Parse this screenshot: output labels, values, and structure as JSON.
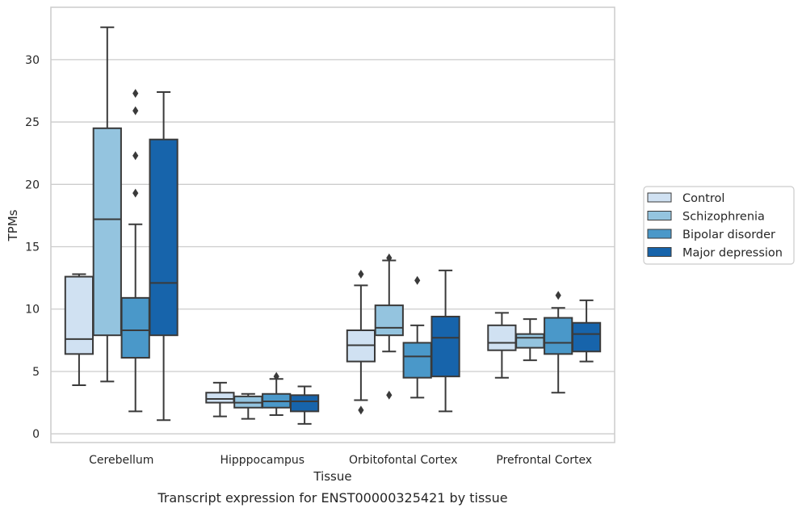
{
  "chart_data": {
    "type": "box",
    "caption": "Transcript expression for ENST00000325421 by tissue",
    "xlabel": "Tissue",
    "ylabel": "TPMs",
    "ylim": [
      -0.7,
      34.2
    ],
    "yticks": [
      0,
      5,
      10,
      15,
      20,
      25,
      30
    ],
    "grid": "horizontal",
    "legend_position": "right",
    "categories": [
      "Cerebellum",
      "Hipppocampus",
      "Orbitofontal Cortex",
      "Prefrontal Cortex"
    ],
    "series": [
      {
        "name": "Control",
        "color": "#d0e1f2",
        "boxes": [
          {
            "whisker_low": 3.9,
            "q1": 6.4,
            "median": 7.6,
            "q3": 12.6,
            "whisker_high": 12.8,
            "outliers": []
          },
          {
            "whisker_low": 1.4,
            "q1": 2.5,
            "median": 2.8,
            "q3": 3.3,
            "whisker_high": 4.1,
            "outliers": []
          },
          {
            "whisker_low": 2.7,
            "q1": 5.8,
            "median": 7.1,
            "q3": 8.3,
            "whisker_high": 11.9,
            "outliers": [
              12.8,
              1.9
            ]
          },
          {
            "whisker_low": 4.5,
            "q1": 6.7,
            "median": 7.3,
            "q3": 8.7,
            "whisker_high": 9.7,
            "outliers": []
          }
        ]
      },
      {
        "name": "Schizophrenia",
        "color": "#94c4df",
        "boxes": [
          {
            "whisker_low": 4.2,
            "q1": 7.9,
            "median": 17.2,
            "q3": 24.5,
            "whisker_high": 32.6,
            "outliers": []
          },
          {
            "whisker_low": 1.2,
            "q1": 2.1,
            "median": 2.5,
            "q3": 3.0,
            "whisker_high": 3.2,
            "outliers": []
          },
          {
            "whisker_low": 6.6,
            "q1": 7.9,
            "median": 8.5,
            "q3": 10.3,
            "whisker_high": 13.9,
            "outliers": [
              14.1,
              3.1
            ]
          },
          {
            "whisker_low": 5.9,
            "q1": 6.9,
            "median": 7.7,
            "q3": 8.0,
            "whisker_high": 9.2,
            "outliers": []
          }
        ]
      },
      {
        "name": "Bipolar disorder",
        "color": "#4a98c9",
        "boxes": [
          {
            "whisker_low": 1.8,
            "q1": 6.1,
            "median": 8.3,
            "q3": 10.9,
            "whisker_high": 16.8,
            "outliers": [
              27.3,
              25.9,
              22.3,
              19.3
            ]
          },
          {
            "whisker_low": 1.5,
            "q1": 2.1,
            "median": 2.6,
            "q3": 3.2,
            "whisker_high": 4.4,
            "outliers": [
              4.6
            ]
          },
          {
            "whisker_low": 2.9,
            "q1": 4.5,
            "median": 6.2,
            "q3": 7.3,
            "whisker_high": 8.7,
            "outliers": [
              12.3
            ]
          },
          {
            "whisker_low": 3.3,
            "q1": 6.4,
            "median": 7.3,
            "q3": 9.3,
            "whisker_high": 10.1,
            "outliers": [
              11.1
            ]
          }
        ]
      },
      {
        "name": "Major depression",
        "color": "#1764ab",
        "boxes": [
          {
            "whisker_low": 1.1,
            "q1": 7.9,
            "median": 12.1,
            "q3": 23.6,
            "whisker_high": 27.4,
            "outliers": []
          },
          {
            "whisker_low": 0.8,
            "q1": 1.8,
            "median": 2.6,
            "q3": 3.1,
            "whisker_high": 3.8,
            "outliers": []
          },
          {
            "whisker_low": 1.8,
            "q1": 4.6,
            "median": 7.7,
            "q3": 9.4,
            "whisker_high": 13.1,
            "outliers": []
          },
          {
            "whisker_low": 5.8,
            "q1": 6.6,
            "median": 8.0,
            "q3": 8.9,
            "whisker_high": 10.7,
            "outliers": []
          }
        ]
      }
    ]
  }
}
